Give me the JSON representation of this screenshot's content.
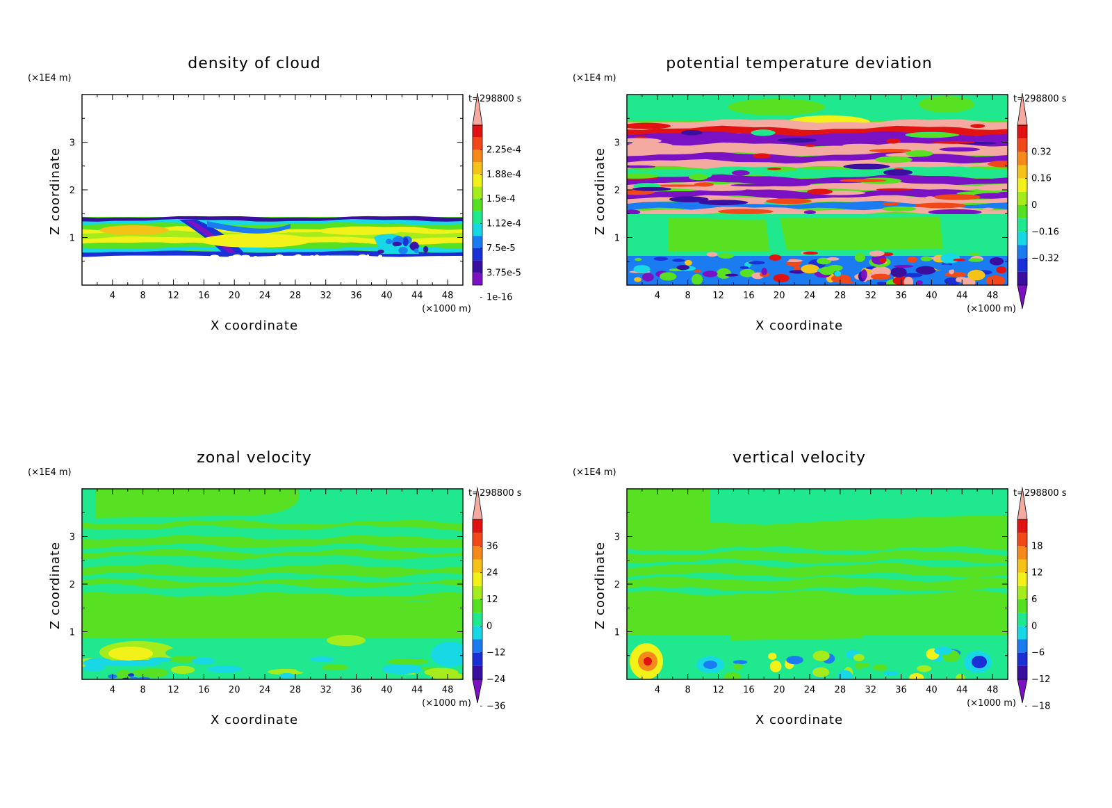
{
  "figure": {
    "chart_data": [
      {
        "type": "heatmap",
        "title": "density of cloud",
        "time_label": "t=298800 s",
        "xlabel": "X coordinate",
        "ylabel": "Z coordinate",
        "x_scale_label": "(×1000 m)",
        "y_scale_label": "(×1E4 m)",
        "xlim": [
          0,
          50
        ],
        "ylim": [
          0,
          4
        ],
        "xticks": [
          4,
          8,
          12,
          16,
          20,
          24,
          28,
          32,
          36,
          40,
          44,
          48
        ],
        "yticks": [
          1,
          2,
          3
        ],
        "colorbar_labels": [
          "2.25e-4",
          "1.88e-4",
          "1.5e-4",
          "1.12e-4",
          "7.5e-5",
          "3.75e-5",
          "1e-16"
        ],
        "colorbar_lower_arrow": false
      },
      {
        "type": "heatmap",
        "title": "potential temperature deviation",
        "time_label": "t=298800 s",
        "xlabel": "X coordinate",
        "ylabel": "Z coordinate",
        "x_scale_label": "(×1000 m)",
        "y_scale_label": "(×1E4 m)",
        "xlim": [
          0,
          50
        ],
        "ylim": [
          0,
          4
        ],
        "xticks": [
          4,
          8,
          12,
          16,
          20,
          24,
          28,
          32,
          36,
          40,
          44,
          48
        ],
        "yticks": [
          1,
          2,
          3
        ],
        "colorbar_labels": [
          "0.32",
          "0.16",
          "0",
          "−0.16",
          "−0.32"
        ],
        "colorbar_lower_arrow": true
      },
      {
        "type": "heatmap",
        "title": "zonal velocity",
        "time_label": "t=298800 s",
        "xlabel": "X coordinate",
        "ylabel": "Z coordinate",
        "x_scale_label": "(×1000 m)",
        "y_scale_label": "(×1E4 m)",
        "xlim": [
          0,
          50
        ],
        "ylim": [
          0,
          4
        ],
        "xticks": [
          4,
          8,
          12,
          16,
          20,
          24,
          28,
          32,
          36,
          40,
          44,
          48
        ],
        "yticks": [
          1,
          2,
          3
        ],
        "colorbar_labels": [
          "36",
          "24",
          "12",
          "0",
          "−12",
          "−24",
          "−36"
        ],
        "colorbar_lower_arrow": true
      },
      {
        "type": "heatmap",
        "title": "vertical velocity",
        "time_label": "t=298800 s",
        "xlabel": "X coordinate",
        "ylabel": "Z coordinate",
        "x_scale_label": "(×1000 m)",
        "y_scale_label": "(×1E4 m)",
        "xlim": [
          0,
          50
        ],
        "ylim": [
          0,
          4
        ],
        "xticks": [
          4,
          8,
          12,
          16,
          20,
          24,
          28,
          32,
          36,
          40,
          44,
          48
        ],
        "yticks": [
          1,
          2,
          3
        ],
        "colorbar_labels": [
          "18",
          "12",
          "6",
          "0",
          "−6",
          "−12",
          "−18"
        ],
        "colorbar_lower_arrow": true
      }
    ],
    "colormap": [
      "#7a12c4",
      "#3a0fa0",
      "#1b2fd6",
      "#1a7cf0",
      "#18d8e6",
      "#1fe88e",
      "#58e022",
      "#a6ec1c",
      "#f2f21a",
      "#f5c218",
      "#f58a1a",
      "#f04818",
      "#e01212",
      "#f4aaa0"
    ]
  }
}
